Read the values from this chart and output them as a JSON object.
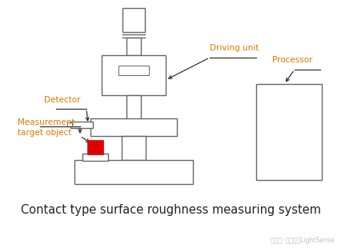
{
  "bg_color": "#ffffff",
  "title": "Contact type surface roughness measuring system",
  "title_fontsize": 10.5,
  "title_color": "#222222",
  "watermark": "公众号· 谌芯科技LightSense",
  "watermark_color": "#c0c0c0",
  "label_driving_unit": "Driving unit",
  "label_detector": "Detector",
  "label_measurement": "Measurement\ntarget object",
  "label_processor": "Processor",
  "label_color": "#e07800",
  "label_fontsize": 7.5,
  "ec": "#666666",
  "lw": 1.0
}
